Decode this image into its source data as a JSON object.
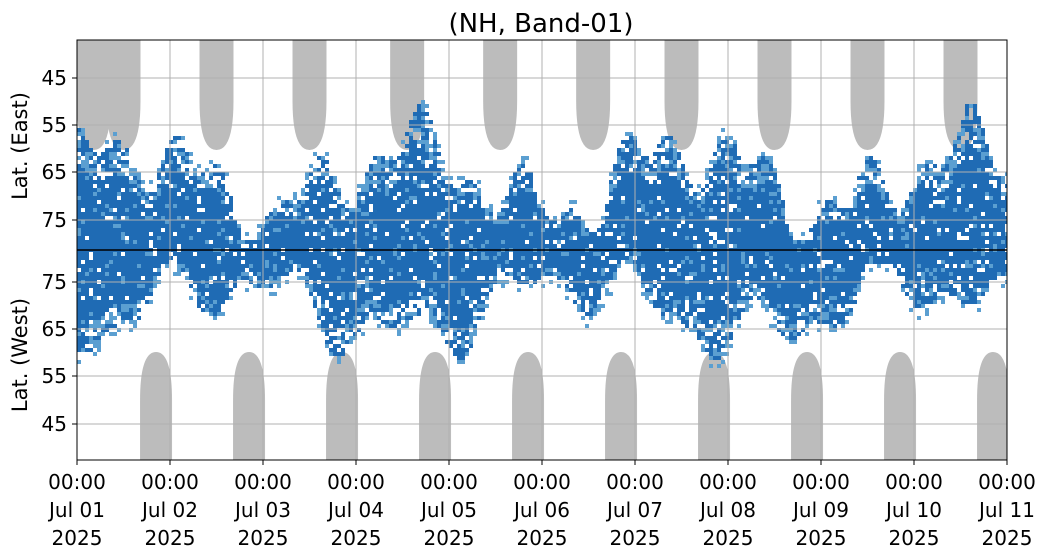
{
  "chart_data": {
    "type": "heatmap",
    "title": "(NH, Band-01)",
    "ylabel_top": "Lat. (East)",
    "ylabel_bottom": "Lat. (West)",
    "y_tick_labels_top": [
      "45",
      "55",
      "65",
      "75"
    ],
    "y_tick_labels_bottom": [
      "75",
      "65",
      "55",
      "45"
    ],
    "y_tick_values_top": [
      45,
      55,
      65,
      75
    ],
    "y_tick_values_bottom": [
      75,
      65,
      55,
      45
    ],
    "x_range_days": [
      0,
      10
    ],
    "x_ticks": [
      {
        "time": "00:00",
        "date": "Jul 01",
        "year": "2025"
      },
      {
        "time": "00:00",
        "date": "Jul 02",
        "year": "2025"
      },
      {
        "time": "00:00",
        "date": "Jul 03",
        "year": "2025"
      },
      {
        "time": "00:00",
        "date": "Jul 04",
        "year": "2025"
      },
      {
        "time": "00:00",
        "date": "Jul 05",
        "year": "2025"
      },
      {
        "time": "00:00",
        "date": "Jul 06",
        "year": "2025"
      },
      {
        "time": "00:00",
        "date": "Jul 07",
        "year": "2025"
      },
      {
        "time": "00:00",
        "date": "Jul 08",
        "year": "2025"
      },
      {
        "time": "00:00",
        "date": "Jul 09",
        "year": "2025"
      },
      {
        "time": "00:00",
        "date": "Jul 10",
        "year": "2025"
      },
      {
        "time": "00:00",
        "date": "Jul 11",
        "year": "2025"
      }
    ],
    "grid": true,
    "colors": {
      "dark_blue": "#1f6bb4",
      "light_blue": "#5b9fd1",
      "gray": "#bcbcbc",
      "grid": "#b0b0b0",
      "center_line": "#000000"
    },
    "gray_regions_top_day_offsets": [
      0.18,
      0.5,
      1.5,
      2.5,
      3.55,
      4.55,
      5.55,
      6.5,
      7.5,
      8.5,
      9.5
    ],
    "gray_regions_bottom_day_offsets": [
      0.85,
      1.85,
      2.85,
      3.85,
      4.85,
      5.85,
      6.85,
      7.85,
      8.85,
      9.85
    ]
  }
}
